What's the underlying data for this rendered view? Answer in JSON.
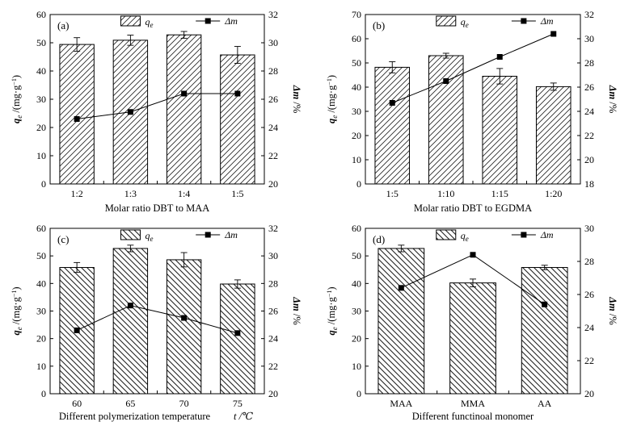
{
  "chart_data": [
    {
      "type": "bar",
      "panel_label": "(a)",
      "categories": [
        "1:2",
        "1:3",
        "1:4",
        "1:5"
      ],
      "series": [
        {
          "name": "q_e",
          "type": "bar",
          "axis": "left",
          "values": [
            49.4,
            50.9,
            52.8,
            45.7
          ],
          "errors": [
            2.4,
            1.8,
            1.2,
            3.0
          ]
        },
        {
          "name": "Δm",
          "type": "line",
          "axis": "right",
          "values": [
            24.6,
            25.1,
            26.4,
            26.4
          ]
        }
      ],
      "xlabel": "Molar ratio DBT to MAA",
      "ylabel_left": "q_e /(mg·g⁻¹)",
      "ylabel_right": "Δm /%",
      "yticks_left": [
        0,
        10,
        20,
        30,
        40,
        50,
        60
      ],
      "yticks_right": [
        20,
        22,
        24,
        26,
        28,
        30,
        32
      ],
      "ylim_left": [
        0,
        60
      ],
      "ylim_right": [
        20,
        32
      ],
      "hatch": "forward",
      "legend": {
        "bar_label": "q",
        "bar_sub": "e",
        "line_label": "Δm"
      }
    },
    {
      "type": "bar",
      "panel_label": "(b)",
      "categories": [
        "1:5",
        "1:10",
        "1:15",
        "1:20"
      ],
      "series": [
        {
          "name": "q_e",
          "type": "bar",
          "axis": "left",
          "values": [
            48.2,
            53.0,
            44.5,
            40.2
          ],
          "errors": [
            2.3,
            1.0,
            3.2,
            1.5
          ]
        },
        {
          "name": "Δm",
          "type": "line",
          "axis": "right",
          "values": [
            24.7,
            26.5,
            28.5,
            30.4
          ]
        }
      ],
      "xlabel": "Molar ratio DBT to EGDMA",
      "ylabel_left": "q_e /(mg·g⁻¹)",
      "ylabel_right": "Δm /%",
      "yticks_left": [
        0,
        10,
        20,
        30,
        40,
        50,
        60,
        70
      ],
      "yticks_right": [
        18,
        20,
        22,
        24,
        26,
        28,
        30,
        32
      ],
      "ylim_left": [
        0,
        70
      ],
      "ylim_right": [
        18,
        32
      ],
      "hatch": "forward",
      "legend": {
        "bar_label": "q",
        "bar_sub": "e",
        "line_label": "Δm"
      }
    },
    {
      "type": "bar",
      "panel_label": "(c)",
      "categories": [
        "60",
        "65",
        "70",
        "75"
      ],
      "series": [
        {
          "name": "q_e",
          "type": "bar",
          "axis": "left",
          "values": [
            45.8,
            52.7,
            48.6,
            39.8
          ],
          "errors": [
            1.8,
            1.2,
            2.6,
            1.5
          ]
        },
        {
          "name": "Δm",
          "type": "line",
          "axis": "right",
          "values": [
            24.6,
            26.4,
            25.5,
            24.4
          ]
        }
      ],
      "xlabel": "Different polymerization temperature",
      "xlabel_unit": "t /℃",
      "ylabel_left": "q_e /(mg·g⁻¹)",
      "ylabel_right": "Δm /%",
      "yticks_left": [
        0,
        10,
        20,
        30,
        40,
        50,
        60
      ],
      "yticks_right": [
        20,
        22,
        24,
        26,
        28,
        30,
        32
      ],
      "ylim_left": [
        0,
        60
      ],
      "ylim_right": [
        20,
        32
      ],
      "hatch": "back",
      "legend": {
        "bar_label": "q",
        "bar_sub": "e",
        "line_label": "Δm"
      }
    },
    {
      "type": "bar",
      "panel_label": "(d)",
      "categories": [
        "MAA",
        "MMA",
        "AA"
      ],
      "series": [
        {
          "name": "q_e",
          "type": "bar",
          "axis": "left",
          "values": [
            52.7,
            40.2,
            45.8
          ],
          "errors": [
            1.2,
            1.4,
            0.8
          ]
        },
        {
          "name": "Δm",
          "type": "line",
          "axis": "right",
          "values": [
            26.4,
            28.4,
            25.4
          ]
        }
      ],
      "xlabel": "Different  functinoal monomer",
      "ylabel_left": "q_e /(mg·g⁻¹)",
      "ylabel_right": "Δm /%",
      "yticks_left": [
        0,
        10,
        20,
        30,
        40,
        50,
        60
      ],
      "yticks_right": [
        20,
        22,
        24,
        26,
        28,
        30
      ],
      "ylim_left": [
        0,
        60
      ],
      "ylim_right": [
        20,
        30
      ],
      "hatch": "back",
      "legend": {
        "bar_label": "q",
        "bar_sub": "e",
        "line_label": "Δm"
      }
    }
  ]
}
